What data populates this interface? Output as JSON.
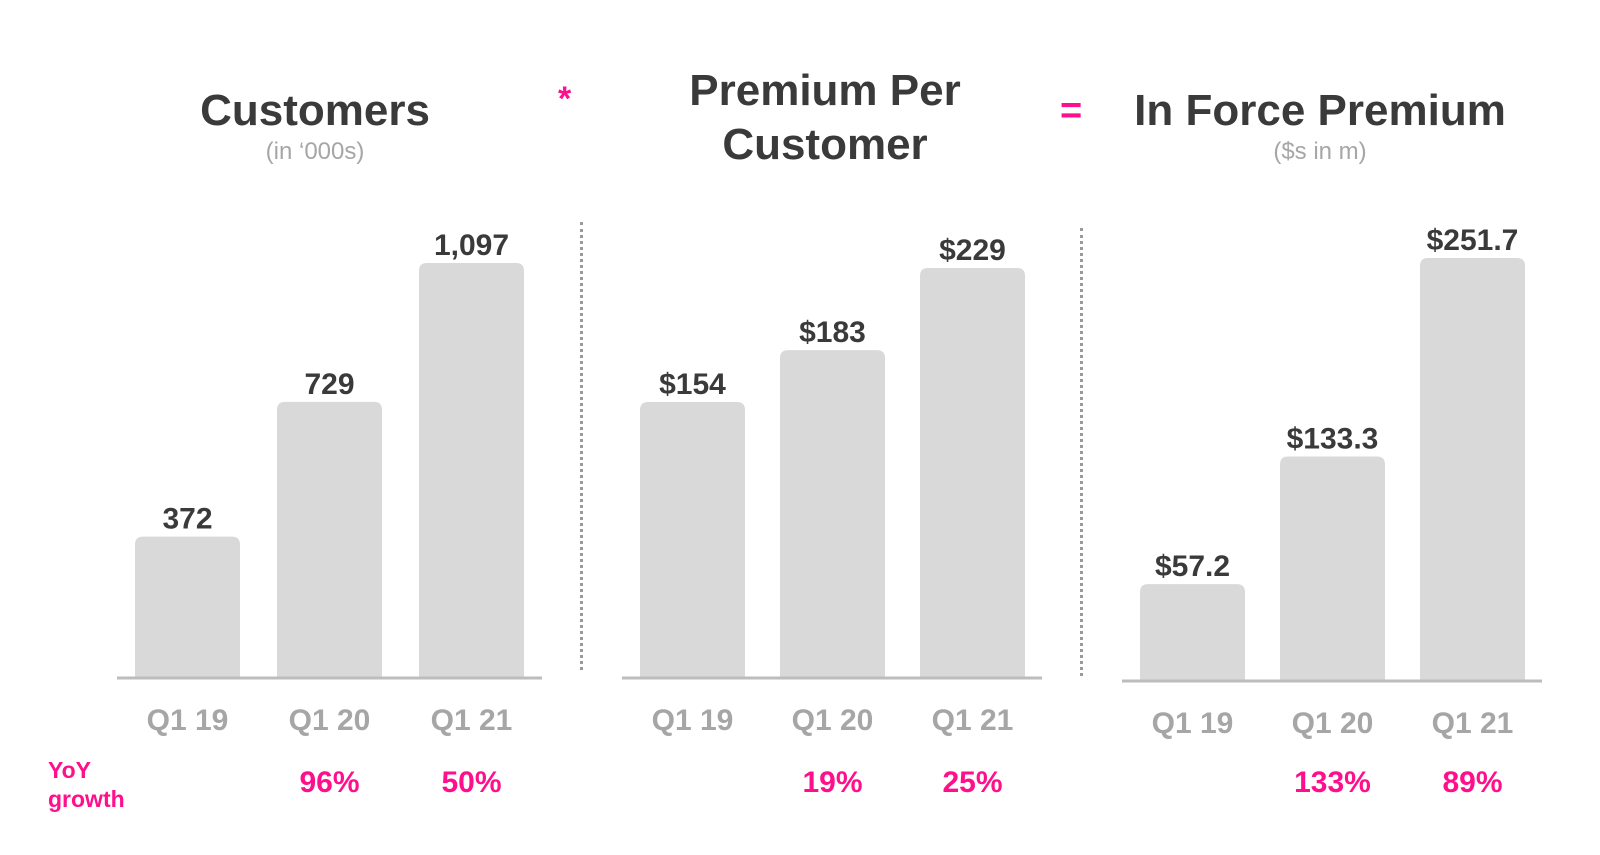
{
  "operators": {
    "multiply": "*",
    "equals": "="
  },
  "yoy_label": "YoY growth",
  "colors": {
    "bar": "#d9d9d9",
    "axis": "#bdbdbd",
    "title": "#3a3a3a",
    "label": "#3a3a3a",
    "tick": "#a6a6a6",
    "accent": "#ff0f8c"
  },
  "chart_data": [
    {
      "type": "bar",
      "title": "Customers",
      "subtitle": "(in ‘000s)",
      "categories": [
        "Q1 19",
        "Q1 20",
        "Q1 21"
      ],
      "values": [
        372,
        729,
        1097
      ],
      "value_labels": [
        "372",
        "729",
        "1,097"
      ],
      "yoy_growth": [
        "",
        "96%",
        "50%"
      ],
      "ylim": [
        0,
        1097
      ]
    },
    {
      "type": "bar",
      "title": "Premium Per Customer",
      "subtitle": "",
      "categories": [
        "Q1 19",
        "Q1 20",
        "Q1 21"
      ],
      "values": [
        154,
        183,
        229
      ],
      "value_labels": [
        "$154",
        "$183",
        "$229"
      ],
      "yoy_growth": [
        "",
        "19%",
        "25%"
      ],
      "ylim": [
        0,
        229
      ]
    },
    {
      "type": "bar",
      "title": "In Force Premium",
      "subtitle": "($s in m)",
      "categories": [
        "Q1 19",
        "Q1 20",
        "Q1 21"
      ],
      "values": [
        57.2,
        133.3,
        251.7
      ],
      "value_labels": [
        "$57.2",
        "$133.3",
        "$251.7"
      ],
      "yoy_growth": [
        "",
        "133%",
        "89%"
      ],
      "ylim": [
        0,
        251.7
      ]
    }
  ]
}
